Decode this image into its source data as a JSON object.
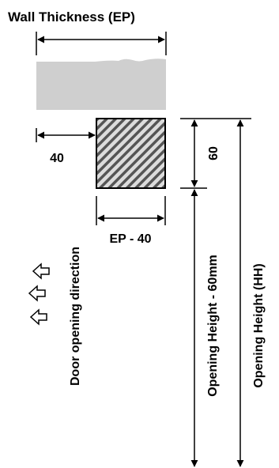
{
  "labels": {
    "wall_thickness": "Wall Thickness (EP)",
    "offset_40": "40",
    "ep_minus_40": "EP - 40",
    "depth_60": "60",
    "opening_height_minus": "Opening Height - 60mm",
    "opening_height": "Opening Height (HH)",
    "door_direction": "Door opening direction"
  },
  "colors": {
    "wall": "#cfcfcf",
    "hatch": "#555555",
    "line": "#000000"
  },
  "icons": [
    "arrow-left-outline-icon",
    "arrow-left-outline-icon",
    "arrow-left-outline-icon"
  ]
}
